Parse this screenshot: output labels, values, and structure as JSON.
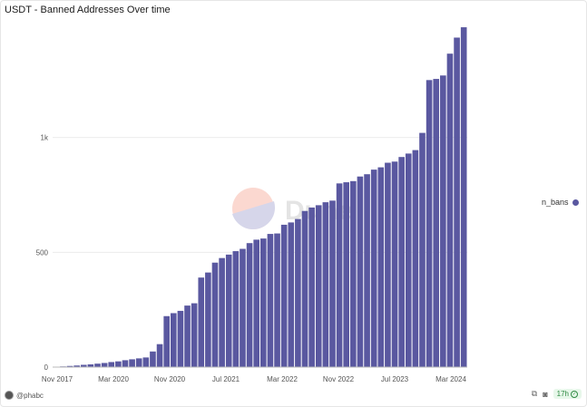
{
  "title": "USDT - Banned Addresses Over time",
  "watermark": "Dune",
  "footer": {
    "username": "@phabc",
    "age": "17h"
  },
  "icons": {
    "user": "avatar",
    "share": "external-link-icon",
    "camera": "camera-icon",
    "status": "check-circle-icon"
  },
  "colors": {
    "bar": "#5a58a0",
    "grid": "#ececec",
    "axis_text": "#555555"
  },
  "chart_data": {
    "type": "bar",
    "x_ticks": [
      "Nov 2017",
      "Mar 2020",
      "Nov 2020",
      "Jul 2021",
      "Mar 2022",
      "Nov 2022",
      "Jul 2023",
      "Mar 2024"
    ],
    "y_ticks": [
      "0",
      "500",
      "1k"
    ],
    "ylim": [
      0,
      1500
    ],
    "series": [
      {
        "name": "n_bans",
        "values": [
          2,
          3,
          5,
          7,
          10,
          12,
          15,
          18,
          22,
          25,
          30,
          34,
          38,
          42,
          68,
          100,
          222,
          235,
          245,
          268,
          278,
          390,
          412,
          455,
          475,
          490,
          505,
          515,
          540,
          555,
          560,
          580,
          582,
          620,
          630,
          645,
          680,
          695,
          705,
          718,
          725,
          800,
          805,
          810,
          830,
          840,
          860,
          870,
          890,
          895,
          915,
          930,
          945,
          1020,
          1250,
          1255,
          1270,
          1365,
          1435,
          1480
        ]
      }
    ]
  }
}
